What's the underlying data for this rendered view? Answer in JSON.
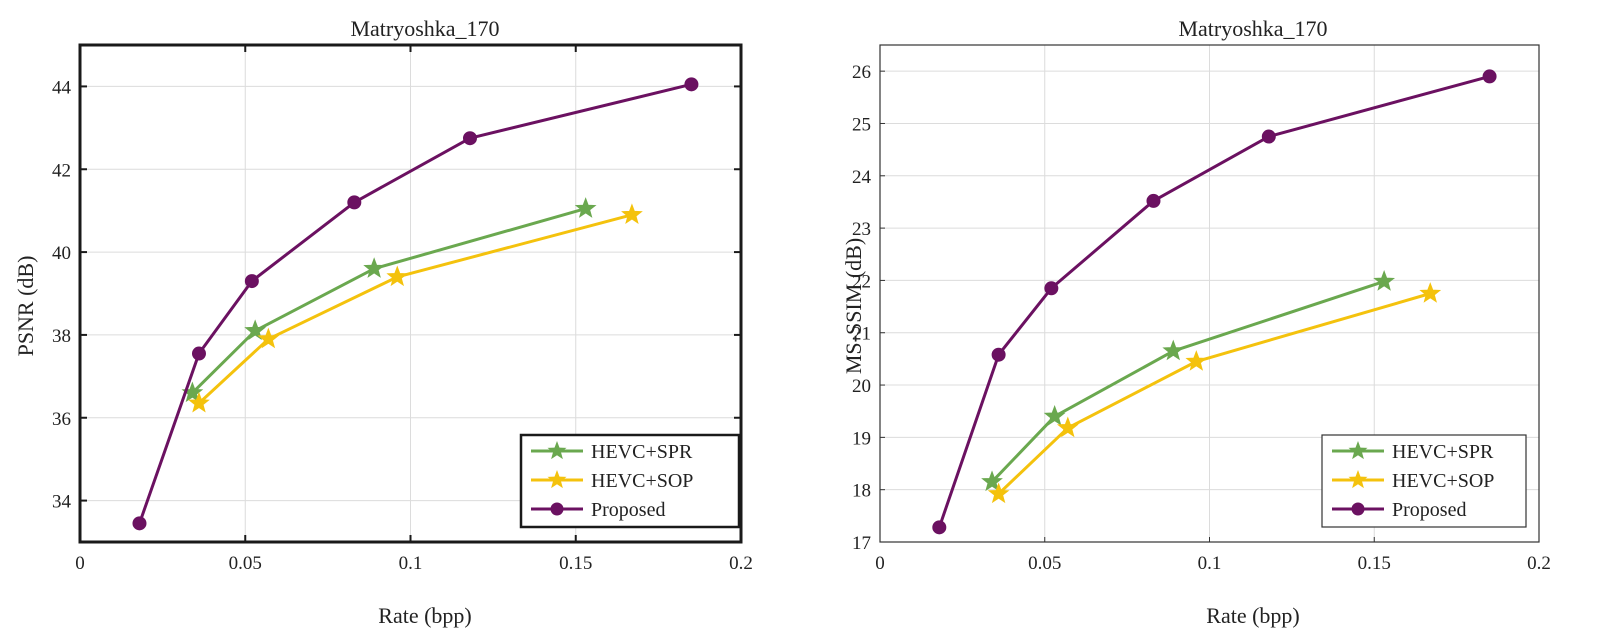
{
  "colors": {
    "HEVC+SPR": "#6aa84f",
    "HEVC+SOP": "#f4c20d",
    "Proposed": "#6b1161"
  },
  "chart_data": [
    {
      "type": "line",
      "title": "Matryoshka_170",
      "xlabel": "Rate (bpp)",
      "ylabel": "PSNR (dB)",
      "xlim": [
        0,
        0.2
      ],
      "ylim": [
        33,
        45
      ],
      "xticks": [
        0,
        0.05,
        0.1,
        0.15,
        0.2
      ],
      "xtick_labels": [
        "0",
        "0.05",
        "0.1",
        "0.15",
        "0.2"
      ],
      "yticks": [
        34,
        36,
        38,
        40,
        42,
        44
      ],
      "ytick_labels": [
        "34",
        "36",
        "38",
        "40",
        "42",
        "44"
      ],
      "grid": true,
      "box": "bold",
      "legend_position": "bottom-right",
      "series": [
        {
          "name": "HEVC+SPR",
          "marker": "star",
          "x": [
            0.034,
            0.053,
            0.089,
            0.153
          ],
          "y": [
            36.6,
            38.1,
            39.6,
            41.05
          ]
        },
        {
          "name": "HEVC+SOP",
          "marker": "star",
          "x": [
            0.036,
            0.057,
            0.096,
            0.167
          ],
          "y": [
            36.35,
            37.9,
            39.4,
            40.9
          ]
        },
        {
          "name": "Proposed",
          "marker": "circle",
          "x": [
            0.018,
            0.036,
            0.052,
            0.083,
            0.118,
            0.185
          ],
          "y": [
            33.45,
            37.55,
            39.3,
            41.2,
            42.75,
            44.05
          ]
        }
      ]
    },
    {
      "type": "line",
      "title": "Matryoshka_170",
      "xlabel": "Rate (bpp)",
      "ylabel": "MS-SSIM (dB)",
      "xlim": [
        0,
        0.2
      ],
      "ylim": [
        17,
        26.5
      ],
      "xticks": [
        0,
        0.05,
        0.1,
        0.15,
        0.2
      ],
      "xtick_labels": [
        "0",
        "0.05",
        "0.1",
        "0.15",
        "0.2"
      ],
      "yticks": [
        17,
        18,
        19,
        20,
        21,
        22,
        23,
        24,
        25,
        26
      ],
      "ytick_labels": [
        "17",
        "18",
        "19",
        "20",
        "21",
        "22",
        "23",
        "24",
        "25",
        "26"
      ],
      "grid": true,
      "box": "thin",
      "legend_position": "bottom-right",
      "series": [
        {
          "name": "HEVC+SPR",
          "marker": "star",
          "x": [
            0.034,
            0.053,
            0.089,
            0.153
          ],
          "y": [
            18.15,
            19.4,
            20.65,
            21.98
          ]
        },
        {
          "name": "HEVC+SOP",
          "marker": "star",
          "x": [
            0.036,
            0.057,
            0.096,
            0.167
          ],
          "y": [
            17.92,
            19.18,
            20.45,
            21.75
          ]
        },
        {
          "name": "Proposed",
          "marker": "circle",
          "x": [
            0.018,
            0.036,
            0.052,
            0.083,
            0.118,
            0.185
          ],
          "y": [
            17.28,
            20.58,
            21.85,
            23.52,
            24.75,
            25.9
          ]
        }
      ]
    }
  ]
}
